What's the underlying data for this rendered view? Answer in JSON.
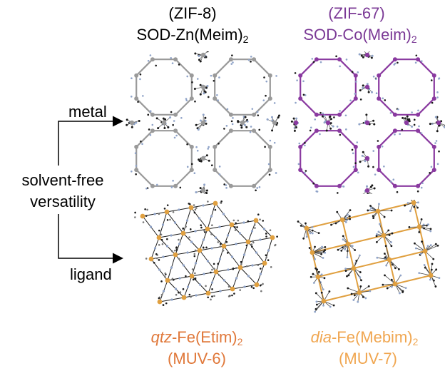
{
  "top_left": {
    "code": "(ZIF-8)",
    "formula_main": "SOD-Zn(Meim)",
    "formula_sub": "2",
    "color": "#1a1a1a"
  },
  "top_right": {
    "code": "(ZIF-67)",
    "formula_main": "SOD-Co(Meim)",
    "formula_sub": "2",
    "color": "#7b3a96"
  },
  "bottom_left": {
    "prefix_italic": "qtz",
    "formula_main": "-Fe(Etim)",
    "formula_sub": "2",
    "code": "(MUV-6)",
    "color": "#e0783a"
  },
  "bottom_right": {
    "prefix_italic": "dia",
    "formula_main": "-Fe(Mebim)",
    "formula_sub": "2",
    "code": "(MUV-7)",
    "color": "#f0a650"
  },
  "labels": {
    "metal": "metal",
    "ligand": "ligand",
    "center_line1": "solvent-free",
    "center_line2": "versatility"
  },
  "colors": {
    "zn_node": "#9a9a9a",
    "co_node": "#8a3aa0",
    "fe_node": "#e0a040",
    "carbon": "#1a1a1a",
    "nitrogen": "#8fa3c8"
  }
}
